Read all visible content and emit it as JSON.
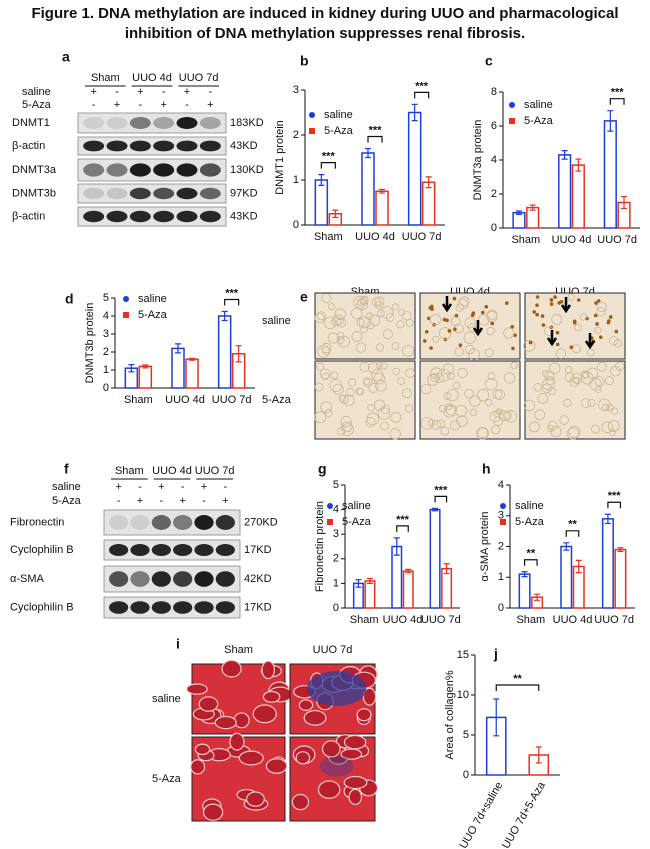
{
  "title_label": "Figure 1.",
  "title": "DNA methylation are induced in kidney during UUO and pharmacological inhibition of DNA methylation suppresses renal fibrosis.",
  "blots": [
    {
      "panel": "a",
      "groups": [
        "Sham",
        "UUO 4d",
        "UUO 7d"
      ],
      "row_labels": [
        "saline",
        "5-Aza"
      ],
      "signs": [
        [
          "+",
          "-",
          "+",
          "-",
          "+",
          "-"
        ],
        [
          "-",
          "+",
          "-",
          "+",
          "-",
          "+"
        ]
      ],
      "bands": [
        {
          "name": "DNMT1",
          "size": "183KD"
        },
        {
          "name": "β-actin",
          "size": "43KD"
        },
        {
          "name": "DNMT3a",
          "size": "130KD"
        },
        {
          "name": "DNMT3b",
          "size": "97KD"
        },
        {
          "name": "β-actin",
          "size": "43KD"
        }
      ]
    },
    {
      "panel": "f",
      "groups": [
        "Sham",
        "UUO 4d",
        "UUO 7d"
      ],
      "row_labels": [
        "saline",
        "5-Aza"
      ],
      "signs": [
        [
          "+",
          "-",
          "+",
          "-",
          "+",
          "-"
        ],
        [
          "-",
          "+",
          "-",
          "+",
          "-",
          "+"
        ]
      ],
      "bands": [
        {
          "name": "Fibronectin",
          "size": "270KD"
        },
        {
          "name": "Cyclophilin B",
          "size": "17KD"
        },
        {
          "name": "α-SMA",
          "size": "42KD"
        },
        {
          "name": "Cyclophilin B",
          "size": "17KD"
        }
      ]
    }
  ],
  "images": [
    {
      "panel": "e",
      "columns": [
        "Sham",
        "UUO 4d",
        "UUO 7d"
      ],
      "rows": [
        "saline",
        "5-Aza"
      ]
    },
    {
      "panel": "i",
      "columns": [
        "Sham",
        "UUO 7d"
      ],
      "rows": [
        "saline",
        "5-Aza"
      ]
    }
  ],
  "chart_data": [
    {
      "type": "bar",
      "panel": "b",
      "ylabel": "DNMT1 protein",
      "categories": [
        "Sham",
        "UUO 4d",
        "UUO 7d"
      ],
      "series": [
        {
          "name": "saline",
          "color": "#1a3fd6",
          "values": [
            1.0,
            1.6,
            2.5
          ],
          "errors": [
            0.12,
            0.1,
            0.18
          ]
        },
        {
          "name": "5-Aza",
          "color": "#e8311c",
          "values": [
            0.25,
            0.75,
            0.95
          ],
          "errors": [
            0.08,
            0.04,
            0.12
          ]
        }
      ],
      "annotations": [
        "***",
        "***",
        "***"
      ],
      "ylim": [
        0,
        3
      ],
      "yticks": [
        0,
        1,
        2,
        3
      ]
    },
    {
      "type": "bar",
      "panel": "c",
      "ylabel": "DNMT3a protein",
      "categories": [
        "Sham",
        "UUO 4d",
        "UUO 7d"
      ],
      "series": [
        {
          "name": "saline",
          "color": "#1a3fd6",
          "values": [
            0.9,
            4.3,
            6.3
          ],
          "errors": [
            0.1,
            0.25,
            0.6
          ]
        },
        {
          "name": "5-Aza",
          "color": "#e8311c",
          "values": [
            1.2,
            3.7,
            1.5
          ],
          "errors": [
            0.15,
            0.35,
            0.35
          ]
        }
      ],
      "annotations": [
        null,
        null,
        "***"
      ],
      "ylim": [
        0,
        8
      ],
      "yticks": [
        0,
        2,
        4,
        6,
        8
      ]
    },
    {
      "type": "bar",
      "panel": "d",
      "ylabel": "DNMT3b protein",
      "categories": [
        "Sham",
        "UUO 4d",
        "UUO 7d"
      ],
      "series": [
        {
          "name": "saline",
          "color": "#1a3fd6",
          "values": [
            1.1,
            2.2,
            4.0
          ],
          "errors": [
            0.2,
            0.25,
            0.25
          ]
        },
        {
          "name": "5-Aza",
          "color": "#e8311c",
          "values": [
            1.2,
            1.6,
            1.9
          ],
          "errors": [
            0.08,
            0.05,
            0.45
          ]
        }
      ],
      "annotations": [
        null,
        null,
        "***"
      ],
      "ylim": [
        0,
        5
      ],
      "yticks": [
        0,
        1,
        2,
        3,
        4,
        5
      ]
    },
    {
      "type": "bar",
      "panel": "g",
      "ylabel": "Fibronectin protein",
      "categories": [
        "Sham",
        "UUO 4d",
        "UUO 7d"
      ],
      "series": [
        {
          "name": "saline",
          "color": "#1a3fd6",
          "values": [
            1.0,
            2.5,
            4.0
          ],
          "errors": [
            0.15,
            0.35,
            0.05
          ]
        },
        {
          "name": "5-Aza",
          "color": "#e8311c",
          "values": [
            1.1,
            1.5,
            1.6
          ],
          "errors": [
            0.1,
            0.07,
            0.2
          ]
        }
      ],
      "annotations": [
        null,
        "***",
        "***"
      ],
      "ylim": [
        0,
        5
      ],
      "yticks": [
        0,
        1,
        2,
        3,
        4,
        5
      ]
    },
    {
      "type": "bar",
      "panel": "h",
      "ylabel": "α-SMA protein",
      "categories": [
        "Sham",
        "UUO 4d",
        "UUO 7d"
      ],
      "series": [
        {
          "name": "saline",
          "color": "#1a3fd6",
          "values": [
            1.1,
            2.0,
            2.9
          ],
          "errors": [
            0.08,
            0.12,
            0.15
          ]
        },
        {
          "name": "5-Aza",
          "color": "#e8311c",
          "values": [
            0.35,
            1.35,
            1.9
          ],
          "errors": [
            0.1,
            0.2,
            0.06
          ]
        }
      ],
      "annotations": [
        "**",
        "**",
        "***"
      ],
      "ylim": [
        0,
        4
      ],
      "yticks": [
        0,
        1,
        2,
        3,
        4
      ]
    },
    {
      "type": "bar",
      "panel": "j",
      "ylabel": "Area of collagen%",
      "categories": [
        "UUO 7d+saline",
        "UUO 7d+5-Aza"
      ],
      "values": [
        7.2,
        2.5
      ],
      "errors": [
        2.3,
        1.0
      ],
      "colors": [
        "#1a3fd6",
        "#e8311c"
      ],
      "annotation": "**",
      "ylim": [
        0,
        15
      ],
      "yticks": [
        0,
        5,
        10,
        15
      ]
    }
  ]
}
